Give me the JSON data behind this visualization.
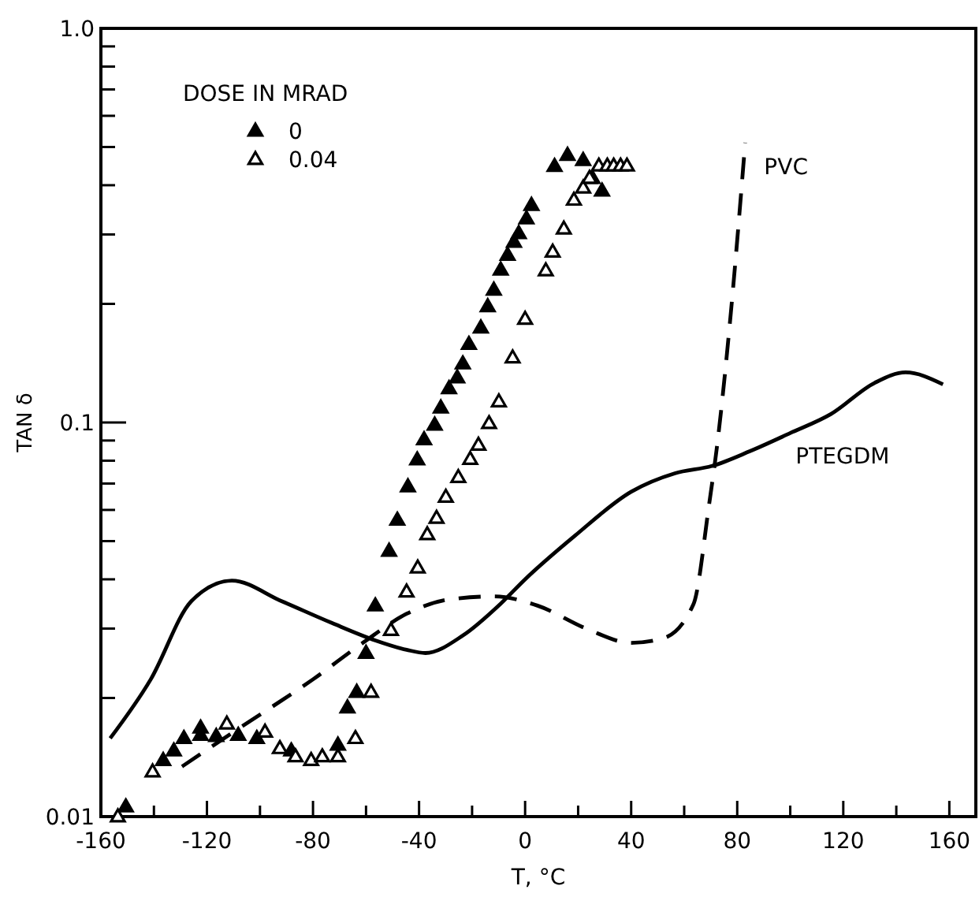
{
  "chart_data": {
    "type": "scatter",
    "xlabel": "T, °C",
    "ylabel": "TAN δ",
    "legend_title": "DOSE IN MRAD",
    "legend": "top left",
    "log": "y",
    "grid": false,
    "xlim": [
      -160,
      170
    ],
    "xticks": [
      -160,
      {
        "value": -140,
        "label": null
      },
      -120,
      {
        "value": -100,
        "label": null
      },
      -80,
      {
        "value": -60,
        "label": null
      },
      -40,
      {
        "value": -20,
        "label": null
      },
      0,
      {
        "value": 20,
        "label": null
      },
      40,
      {
        "value": 60,
        "label": null
      },
      80,
      {
        "value": 100,
        "label": null
      },
      120,
      {
        "value": 140,
        "label": null
      },
      160
    ],
    "ylim": [
      0.01,
      1
    ],
    "yticks": [
      0.01,
      {
        "value": 0.02,
        "label": null
      },
      {
        "value": 0.03,
        "label": null
      },
      {
        "value": 0.04,
        "label": null
      },
      {
        "value": 0.05,
        "label": null
      },
      {
        "value": 0.06,
        "label": null
      },
      {
        "value": 0.07,
        "label": null
      },
      {
        "value": 0.08,
        "label": null
      },
      {
        "value": 0.09,
        "label": null
      },
      0.1,
      {
        "value": 0.2,
        "label": null
      },
      {
        "value": 0.3,
        "label": null
      },
      {
        "value": 0.4,
        "label": null
      },
      {
        "value": 0.5,
        "label": null
      },
      {
        "value": 0.6,
        "label": null
      },
      {
        "value": 0.7,
        "label": null
      },
      {
        "value": 0.8,
        "label": null
      },
      {
        "value": 0.9,
        "label": null
      },
      {
        "value": 1,
        "label": "1.0"
      }
    ],
    "series": [
      {
        "name": "0",
        "marker": "triangle",
        "color": "#000000",
        "x": [
          -150.6,
          -136.5,
          -132.5,
          -128.7,
          -122.4,
          -122.4,
          -116.5,
          -108.2,
          -101.2,
          -88.2,
          -70.6,
          -67,
          -63.5,
          -60,
          -56.5,
          -51.3,
          -48.2,
          -44.2,
          -40.7,
          -38.1,
          -34.1,
          -31.8,
          -28.7,
          -25.6,
          -23.5,
          -21.2,
          -16.7,
          -14.1,
          -11.8,
          -9.2,
          -6.6,
          -4.2,
          -2.4,
          0.5,
          2.4,
          11.1,
          16,
          21.9,
          25.4,
          29
        ],
        "values": [
          0.0106,
          0.0139,
          0.0147,
          0.0158,
          0.0168,
          0.0161,
          0.016,
          0.0161,
          0.0158,
          0.0147,
          0.0152,
          0.0189,
          0.0207,
          0.026,
          0.0343,
          0.0472,
          0.0566,
          0.0688,
          0.0805,
          0.0906,
          0.0986,
          0.109,
          0.122,
          0.13,
          0.141,
          0.158,
          0.174,
          0.197,
          0.217,
          0.244,
          0.266,
          0.287,
          0.302,
          0.329,
          0.356,
          0.447,
          0.477,
          0.463,
          0.417,
          0.387
        ]
      },
      {
        "name": "0.04",
        "marker": "triangle",
        "color": "#ffffff",
        "x": [
          -153.6,
          -140.5,
          -112.5,
          -98.1,
          -92.5,
          -86.6,
          -80.7,
          -76.5,
          -70.6,
          -64,
          -58.1,
          -50.6,
          -44.7,
          -40.5,
          -36.9,
          -33.4,
          -29.9,
          -25.2,
          -20.7,
          -17.6,
          -13.6,
          -9.9,
          -4.7,
          0,
          7.8,
          10.4,
          14.6,
          18.4,
          21.9,
          24.3,
          27.8,
          31,
          33.4,
          36,
          38.4
        ],
        "values": [
          0.01,
          0.013,
          0.0172,
          0.0164,
          0.0149,
          0.0142,
          0.0139,
          0.0142,
          0.0142,
          0.0158,
          0.0207,
          0.0297,
          0.0372,
          0.0428,
          0.052,
          0.0572,
          0.0647,
          0.0726,
          0.0807,
          0.0877,
          0.0995,
          0.113,
          0.146,
          0.183,
          0.243,
          0.271,
          0.31,
          0.367,
          0.394,
          0.417,
          0.448,
          0.448,
          0.448,
          0.448,
          0.448
        ]
      },
      {
        "name": "PTEGDM",
        "type": "line",
        "marker": "none",
        "color": "#000000",
        "line_style": "solid",
        "x": [
          -156.5,
          -141.2,
          -125.9,
          -110.6,
          -91.8,
          -72.9,
          -56.5,
          -44.7,
          -37.6,
          -23.5,
          -9.4,
          0,
          18.8,
          40,
          56.5,
          70.6,
          84.7,
          100,
          115.3,
          131.8,
          143.5,
          157.6
        ],
        "values": [
          0.0158,
          0.0223,
          0.0352,
          0.0397,
          0.0352,
          0.031,
          0.028,
          0.0265,
          0.026,
          0.0288,
          0.0346,
          0.04,
          0.0516,
          0.0667,
          0.0743,
          0.0776,
          0.0845,
          0.094,
          0.105,
          0.126,
          0.134,
          0.125
        ]
      },
      {
        "name": "PVC",
        "type": "line",
        "marker": "none",
        "color": "#000000",
        "line_style": "dashed",
        "x": [
          -129.4,
          -108.2,
          -80,
          -61.2,
          -44.7,
          -28.2,
          -11.8,
          4.7,
          23.5,
          40,
          51.8,
          63.5,
          69.4,
          72.2,
          77.6,
          83
        ],
        "values": [
          0.0134,
          0.0167,
          0.0223,
          0.0276,
          0.0327,
          0.0356,
          0.0362,
          0.0343,
          0.0299,
          0.0276,
          0.0283,
          0.0346,
          0.062,
          0.0851,
          0.19,
          0.513
        ]
      }
    ]
  }
}
